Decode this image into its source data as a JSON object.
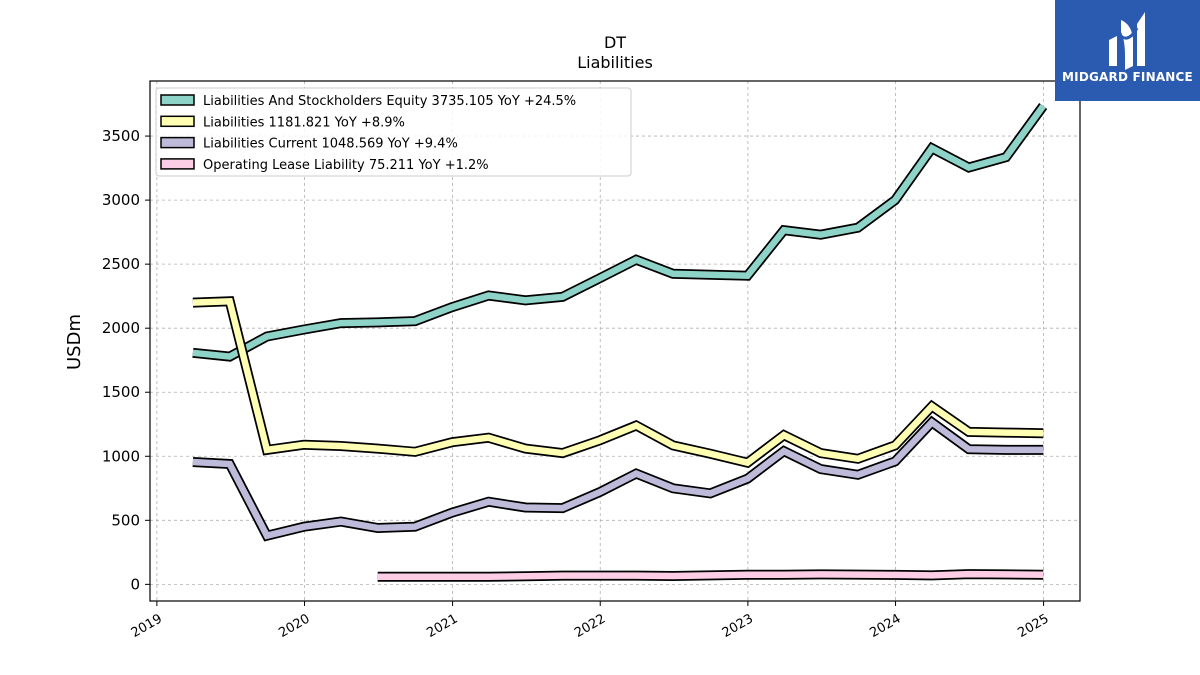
{
  "brand": {
    "name": "MIDGARD FINANCE",
    "colors": {
      "background": "#2b5bb0",
      "text": "#ffffff"
    },
    "logo_icon": "stylized-m-icon"
  },
  "chart_data": {
    "type": "line",
    "title": "DT",
    "subtitle": "Liabilities",
    "xlabel": "",
    "ylabel": "USDm",
    "ylim": [
      -130,
      3930
    ],
    "yticks": [
      0,
      500,
      1000,
      1500,
      2000,
      2500,
      3000,
      3500
    ],
    "ytick_labels": [
      "0",
      "500",
      "1000",
      "1500",
      "2000",
      "2500",
      "3000",
      "3500"
    ],
    "xticks": [
      "2019-01-01",
      "2020-01-01",
      "2021-01-01",
      "2022-01-01",
      "2023-01-01",
      "2024-01-01",
      "2025-01-01"
    ],
    "xtick_labels": [
      "2019",
      "2020",
      "2021",
      "2022",
      "2023",
      "2024",
      "2025"
    ],
    "xlim": [
      "2018-12-15",
      "2025-04-01"
    ],
    "grid": true,
    "legend_position": "top-left",
    "x": [
      "2019-03-31",
      "2019-06-30",
      "2019-09-30",
      "2019-12-31",
      "2020-03-31",
      "2020-06-30",
      "2020-09-30",
      "2020-12-31",
      "2021-03-31",
      "2021-06-30",
      "2021-09-30",
      "2021-12-31",
      "2022-03-31",
      "2022-06-30",
      "2022-09-30",
      "2022-12-31",
      "2023-03-31",
      "2023-06-30",
      "2023-09-30",
      "2023-12-31",
      "2024-03-31",
      "2024-06-30",
      "2024-09-30",
      "2024-12-31"
    ],
    "series": [
      {
        "name": "Liabilities And Stockholders Equity",
        "legend_label": "Liabilities And Stockholders Equity  3735.105 YoY +24.5%",
        "color": "#8dd3c7",
        "values": [
          1808,
          1778,
          1935,
          1990,
          2040,
          2045,
          2055,
          2165,
          2255,
          2218,
          2245,
          2390,
          2535,
          2425,
          2418,
          2410,
          2765,
          2730,
          2785,
          3000,
          3405,
          3255,
          3335,
          3735
        ]
      },
      {
        "name": "Liabilities",
        "legend_label": "Liabilities  1181.821 YoY +8.9%",
        "color": "#ffffb3",
        "values": [
          2200,
          2210,
          1050,
          1090,
          1080,
          1060,
          1035,
          1110,
          1145,
          1060,
          1025,
          1125,
          1240,
          1085,
          1020,
          950,
          1165,
          1025,
          980,
          1085,
          1390,
          1190,
          1185,
          1180
        ]
      },
      {
        "name": "Liabilities Current",
        "legend_label": "Liabilities Current  1048.569 YoY +9.4%",
        "color": "#bebada",
        "values": [
          955,
          940,
          380,
          450,
          490,
          440,
          450,
          560,
          645,
          600,
          595,
          720,
          865,
          750,
          710,
          825,
          1040,
          900,
          855,
          960,
          1265,
          1055,
          1050,
          1050
        ]
      },
      {
        "name": "Operating Lease Liability",
        "legend_label": "Operating Lease Liability  75.211 YoY +1.2%",
        "color": "#fccde5",
        "values": [
          null,
          null,
          null,
          null,
          null,
          60,
          60,
          60,
          60,
          63,
          68,
          68,
          68,
          65,
          70,
          75,
          75,
          78,
          76,
          74,
          70,
          80,
          78,
          75
        ]
      }
    ]
  }
}
